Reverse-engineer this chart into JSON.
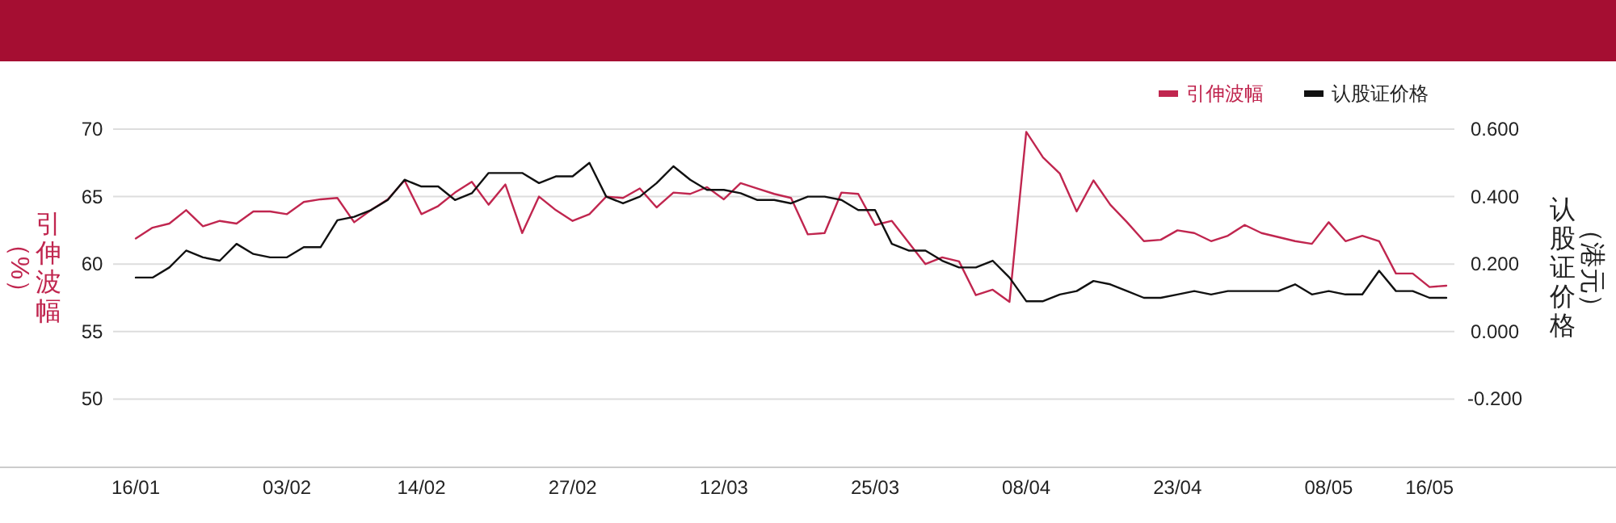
{
  "chart_data": {
    "type": "line",
    "ylabel": "引伸波幅（%）",
    "y2label": "认股证价格（港元）",
    "categories": [
      "16/01",
      null,
      null,
      null,
      null,
      null,
      null,
      null,
      null,
      "03/02",
      null,
      null,
      null,
      null,
      null,
      null,
      null,
      "14/02",
      null,
      null,
      null,
      null,
      null,
      null,
      null,
      null,
      "27/02",
      null,
      null,
      null,
      null,
      null,
      null,
      null,
      null,
      "12/03",
      null,
      null,
      null,
      null,
      null,
      null,
      null,
      null,
      "25/03",
      null,
      null,
      null,
      null,
      null,
      null,
      null,
      null,
      "08/04",
      null,
      null,
      null,
      null,
      null,
      null,
      null,
      null,
      "23/04",
      null,
      null,
      null,
      null,
      null,
      null,
      null,
      null,
      "08/05",
      null,
      null,
      null,
      null,
      null,
      "16/05",
      null
    ],
    "series": [
      {
        "name": "引伸波幅",
        "color": "#c0264f",
        "values": [
          61.9,
          62.7,
          63.0,
          64.0,
          62.8,
          63.2,
          63.0,
          63.9,
          63.9,
          63.7,
          64.6,
          64.8,
          64.9,
          63.1,
          64.0,
          64.8,
          66.2,
          63.7,
          64.3,
          65.3,
          66.1,
          64.4,
          65.9,
          62.3,
          65.0,
          64.0,
          63.2,
          63.7,
          65.0,
          64.9,
          65.6,
          64.2,
          65.3,
          65.2,
          65.7,
          64.8,
          66.0,
          65.6,
          65.2,
          64.9,
          62.2,
          62.3,
          65.3,
          65.2,
          62.9,
          63.2,
          61.6,
          60.0,
          60.5,
          60.2,
          57.7,
          58.1,
          57.2,
          69.8,
          67.9,
          66.7,
          63.9,
          66.2,
          64.4,
          63.1,
          61.7,
          61.8,
          62.5,
          62.3,
          61.7,
          62.1,
          62.9,
          62.3,
          62.0,
          61.7,
          61.5,
          63.1,
          61.7,
          62.1,
          61.7,
          59.3,
          59.3,
          58.3,
          58.4
        ]
      },
      {
        "name": "认股证价格",
        "color": "#111111",
        "axis": "y2",
        "values": [
          0.16,
          0.16,
          0.19,
          0.24,
          0.22,
          0.21,
          0.26,
          0.23,
          0.22,
          0.22,
          0.25,
          0.25,
          0.33,
          0.34,
          0.36,
          0.39,
          0.45,
          0.43,
          0.43,
          0.39,
          0.41,
          0.47,
          0.47,
          0.47,
          0.44,
          0.46,
          0.46,
          0.5,
          0.4,
          0.38,
          0.4,
          0.44,
          0.49,
          0.45,
          0.42,
          0.42,
          0.41,
          0.39,
          0.39,
          0.38,
          0.4,
          0.4,
          0.39,
          0.36,
          0.36,
          0.26,
          0.24,
          0.24,
          0.21,
          0.19,
          0.19,
          0.21,
          0.16,
          0.09,
          0.09,
          0.11,
          0.12,
          0.15,
          0.14,
          0.12,
          0.1,
          0.1,
          0.11,
          0.12,
          0.11,
          0.12,
          0.12,
          0.12,
          0.12,
          0.14,
          0.11,
          0.12,
          0.11,
          0.11,
          0.18,
          0.12,
          0.12,
          0.1,
          0.1
        ]
      }
    ],
    "ylim": [
      45,
      70
    ],
    "yticks": [
      50,
      55,
      60,
      65,
      70
    ],
    "y2lim": [
      -0.4,
      0.6
    ],
    "y2ticks": [
      {
        "value": -0.2,
        "label": "-0.200"
      },
      {
        "value": 0,
        "label": "0.000"
      },
      {
        "value": 0.2,
        "label": "0.200"
      },
      {
        "value": 0.4,
        "label": "0.400"
      },
      {
        "value": 0.6,
        "label": "0.600"
      }
    ],
    "grid": "y",
    "legend": "top right"
  }
}
